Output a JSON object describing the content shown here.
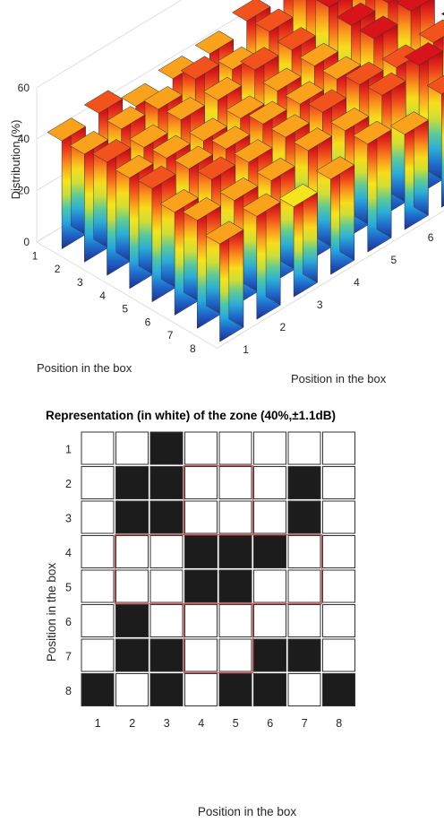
{
  "colors": {
    "bar_gradient": [
      "#1e2f8f",
      "#1f63c8",
      "#27a9e0",
      "#4dc8a6",
      "#c9dd3a",
      "#f6e51c",
      "#fba21d",
      "#f2521c",
      "#d8141a",
      "#7e0a0a"
    ],
    "edge": "#333333",
    "mask_on": "#1c1c1c",
    "mask_off": "#ffffff",
    "zone_outline": "#d9534f"
  },
  "chart_data": [
    {
      "type": "bar3d",
      "title": "",
      "zlabel": "Distribution (%)",
      "xlabel": "Position in the box",
      "ylabel": "Position in the box",
      "zlim": [
        0,
        60
      ],
      "ztick_labels": [
        "0",
        "20",
        "40",
        "60"
      ],
      "row_tick_labels": [
        "1",
        "2",
        "3",
        "4",
        "5",
        "6",
        "7",
        "8"
      ],
      "col_tick_labels": [
        "1",
        "2",
        "3",
        "4",
        "5",
        "6",
        "7",
        "8"
      ],
      "grid": true,
      "values": [
        [
          42,
          44,
          38,
          40,
          41,
          45,
          48,
          40
        ],
        [
          42,
          43,
          42,
          45,
          40,
          46,
          52,
          48
        ],
        [
          44,
          41,
          43,
          42,
          45,
          44,
          52,
          49
        ],
        [
          43,
          42,
          40,
          40,
          42,
          43,
          50,
          50
        ],
        [
          44,
          43,
          42,
          43,
          42,
          43,
          50,
          52
        ],
        [
          40,
          44,
          42,
          43,
          44,
          46,
          44,
          45
        ],
        [
          42,
          41,
          40,
          43,
          42,
          47,
          50,
          58
        ],
        [
          38,
          40,
          35,
          37,
          42,
          37,
          44,
          32
        ]
      ]
    },
    {
      "type": "heatmap",
      "title": "Representation (in white) of the zone (40%,±1.1dB)",
      "xlabel": "Position in the box",
      "ylabel": "Position in the box",
      "row_tick_labels": [
        "1",
        "2",
        "3",
        "4",
        "5",
        "6",
        "7",
        "8"
      ],
      "col_tick_labels": [
        "1",
        "2",
        "3",
        "4",
        "5",
        "6",
        "7",
        "8"
      ],
      "in_zone": [
        [
          1,
          1,
          0,
          1,
          1,
          1,
          1,
          1
        ],
        [
          1,
          0,
          0,
          1,
          1,
          1,
          0,
          1
        ],
        [
          1,
          0,
          0,
          1,
          1,
          1,
          0,
          1
        ],
        [
          1,
          1,
          1,
          0,
          0,
          0,
          1,
          1
        ],
        [
          1,
          1,
          1,
          0,
          0,
          1,
          1,
          1
        ],
        [
          1,
          0,
          1,
          1,
          1,
          1,
          1,
          1
        ],
        [
          1,
          0,
          0,
          1,
          1,
          0,
          0,
          1
        ],
        [
          0,
          1,
          0,
          1,
          0,
          0,
          1,
          0
        ]
      ],
      "highlight_regions": [
        {
          "rows": [
            2,
            3
          ],
          "cols": [
            4,
            5
          ]
        },
        {
          "rows": [
            4,
            5
          ],
          "cols": [
            2,
            7
          ]
        },
        {
          "rows": [
            6,
            7
          ],
          "cols": [
            4,
            5
          ]
        }
      ]
    }
  ]
}
